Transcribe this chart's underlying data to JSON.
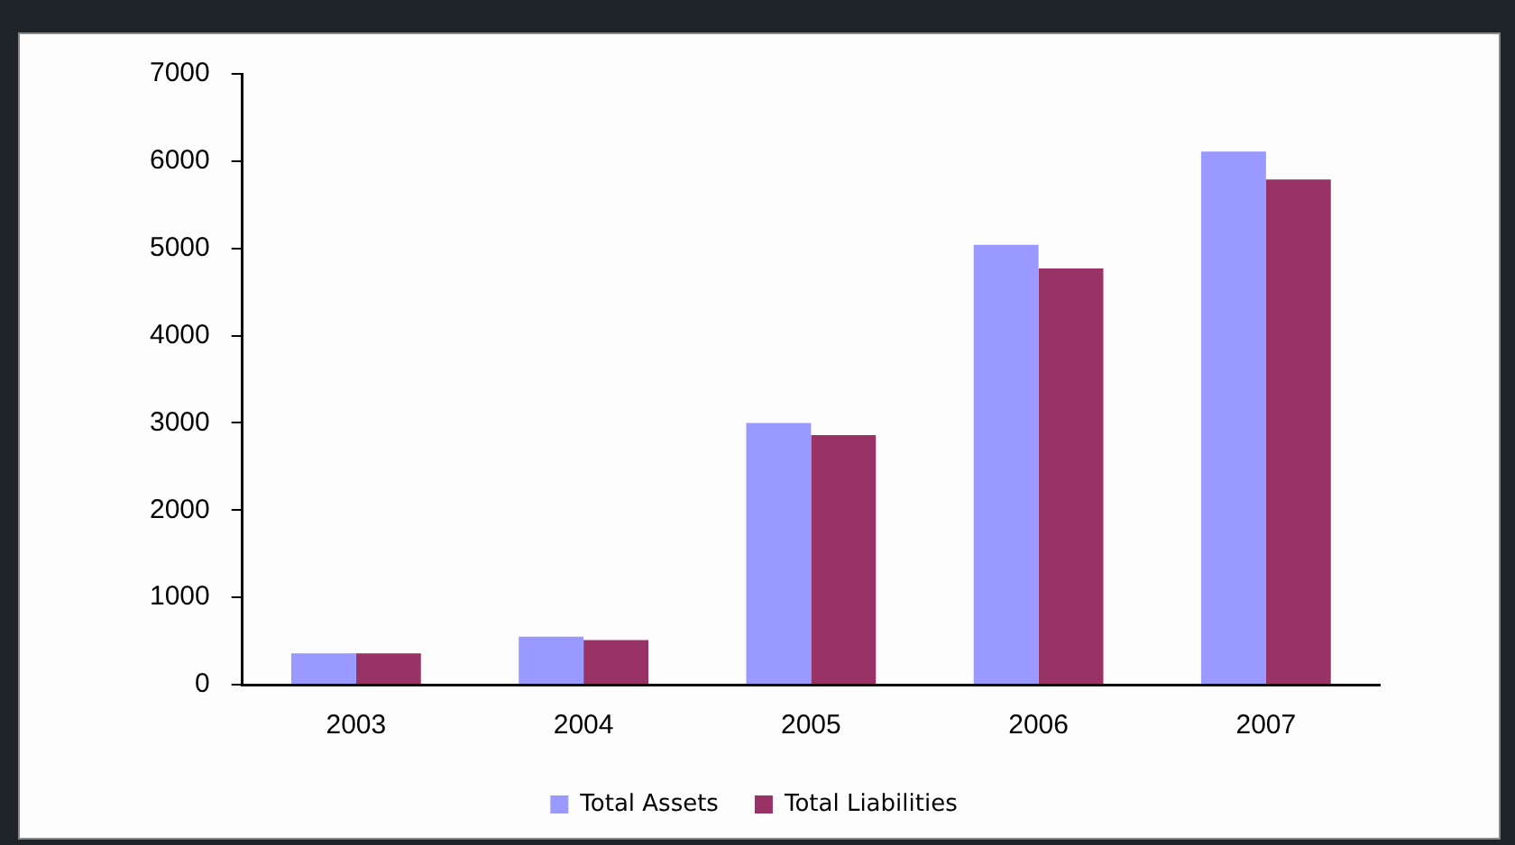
{
  "chart_data": {
    "type": "bar",
    "categories": [
      "2003",
      "2004",
      "2005",
      "2006",
      "2007"
    ],
    "series": [
      {
        "name": "Total Assets",
        "color": "#9999ff",
        "values": [
          360,
          550,
          3000,
          5040,
          6110
        ]
      },
      {
        "name": "Total Liabilities",
        "color": "#993366",
        "values": [
          360,
          510,
          2860,
          4770,
          5790
        ]
      }
    ],
    "ylim": [
      0,
      7000
    ],
    "yticks": [
      0,
      1000,
      2000,
      3000,
      4000,
      5000,
      6000,
      7000
    ],
    "grid": false,
    "legend": "bottom"
  }
}
